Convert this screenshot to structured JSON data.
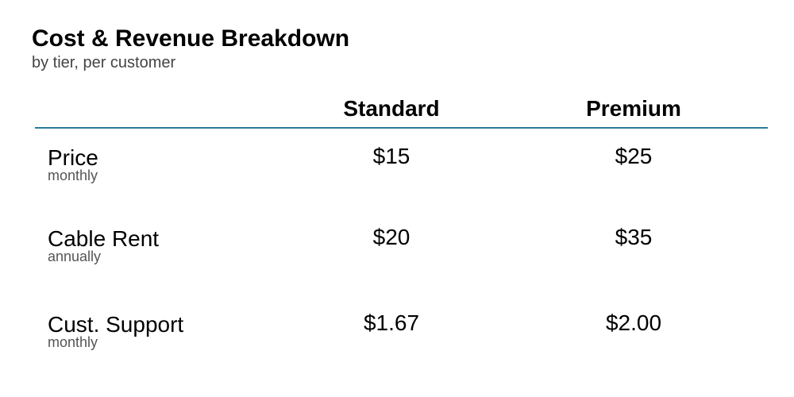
{
  "chart_data": {
    "type": "table",
    "title": "Cost & Revenue Breakdown",
    "subtitle": "by tier, per customer",
    "columns": [
      "Standard",
      "Premium"
    ],
    "rows": [
      {
        "label": "Price",
        "sublabel": "monthly",
        "values": [
          "$15",
          "$25"
        ]
      },
      {
        "label": "Cable Rent",
        "sublabel": "annually",
        "values": [
          "$20",
          "$35"
        ]
      },
      {
        "label": "Cust. Support",
        "sublabel": "monthly",
        "values": [
          "$1.67",
          "$2.00"
        ]
      }
    ],
    "colors": {
      "rule": "#2a7a9a",
      "text": "#000000",
      "subtext": "#555555"
    }
  }
}
